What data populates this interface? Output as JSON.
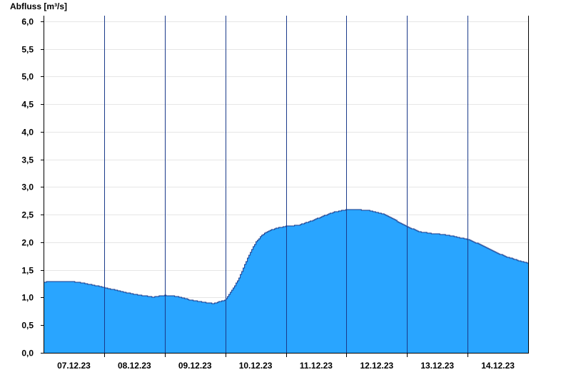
{
  "chart_data": {
    "type": "area",
    "ylabel": "Abfluss [m³/s]",
    "ylim": [
      0,
      6.1
    ],
    "yticks": [
      "0,0",
      "0,5",
      "1,0",
      "1,5",
      "2,0",
      "2,5",
      "3,0",
      "3,5",
      "4,0",
      "4,5",
      "5,0",
      "5,5",
      "6,0"
    ],
    "ytick_values": [
      0,
      0.5,
      1.0,
      1.5,
      2.0,
      2.5,
      3.0,
      3.5,
      4.0,
      4.5,
      5.0,
      5.5,
      6.0
    ],
    "xlim": [
      0,
      8
    ],
    "x_categories": [
      "07.12.23",
      "08.12.23",
      "09.12.23",
      "10.12.23",
      "11.12.23",
      "12.12.23",
      "13.12.23",
      "14.12.23"
    ],
    "grid": true,
    "colors": {
      "fill": "#29a5ff",
      "line": "#1a3a8a",
      "grid": "#e6e6e6"
    },
    "series": [
      {
        "x": [
          0,
          0.1,
          0.3,
          0.45,
          0.6,
          0.8,
          1.0,
          1.2,
          1.4,
          1.6,
          1.8,
          2.0,
          2.2,
          2.4,
          2.6,
          2.8,
          3.0,
          3.1,
          3.2,
          3.3,
          3.4,
          3.5,
          3.6,
          3.7,
          3.8,
          3.9,
          4.0,
          4.2,
          4.4,
          4.6,
          4.8,
          5.0,
          5.2,
          5.4,
          5.6,
          5.8,
          6.0,
          6.2,
          6.4,
          6.6,
          6.8,
          7.0,
          7.2,
          7.4,
          7.6,
          7.8,
          8.0
        ],
        "y": [
          1.28,
          1.29,
          1.29,
          1.29,
          1.27,
          1.23,
          1.18,
          1.13,
          1.08,
          1.04,
          1.01,
          1.04,
          1.02,
          0.96,
          0.92,
          0.89,
          0.96,
          1.12,
          1.3,
          1.55,
          1.8,
          2.0,
          2.13,
          2.2,
          2.24,
          2.27,
          2.29,
          2.31,
          2.38,
          2.47,
          2.55,
          2.59,
          2.59,
          2.57,
          2.51,
          2.4,
          2.28,
          2.19,
          2.16,
          2.14,
          2.1,
          2.05,
          1.96,
          1.85,
          1.75,
          1.68,
          1.62
        ]
      }
    ]
  }
}
